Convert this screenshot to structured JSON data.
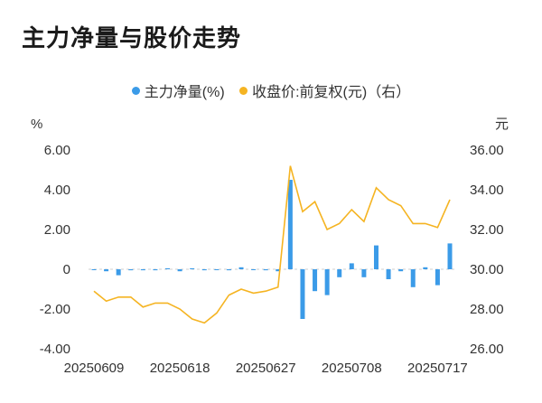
{
  "page": {
    "title": "主力净量与股价走势"
  },
  "chart_data": {
    "type": "bar",
    "title": "主力净量与股价走势",
    "legend_placement": "top-center",
    "left_axis_unit": "%",
    "right_axis_unit": "元",
    "left_ylim": [
      -4,
      6
    ],
    "left_ticks": [
      "6.00",
      "4.00",
      "2.00",
      "0",
      "-2.00",
      "-4.00"
    ],
    "right_ylim": [
      26,
      36
    ],
    "right_ticks": [
      "36.00",
      "34.00",
      "32.00",
      "30.00",
      "28.00",
      "26.00"
    ],
    "x_tick_labels": [
      "20250609",
      "20250618",
      "20250627",
      "20250708",
      "20250717"
    ],
    "x_tick_indices": [
      0,
      7,
      14,
      21,
      28
    ],
    "grid": false,
    "series": [
      {
        "name": "主力净量(%)",
        "type": "bar",
        "axis": "left",
        "color": "#3b9be8",
        "values": [
          0,
          -0.1,
          -0.3,
          -0.05,
          -0.05,
          -0.05,
          0.05,
          -0.1,
          0.05,
          -0.05,
          0,
          -0.05,
          0.1,
          0,
          -0.05,
          -0.1,
          4.5,
          -2.5,
          -1.1,
          -1.3,
          -0.4,
          0.3,
          -0.4,
          1.2,
          -0.5,
          -0.1,
          -0.9,
          0.1,
          -0.8,
          1.3
        ]
      },
      {
        "name": "收盘价:前复权(元)（右）",
        "type": "line",
        "axis": "right",
        "color": "#f5b422",
        "values": [
          28.9,
          28.4,
          28.6,
          28.6,
          28.1,
          28.3,
          28.3,
          28.0,
          27.5,
          27.3,
          27.8,
          28.7,
          29.0,
          28.8,
          28.9,
          29.1,
          35.2,
          32.9,
          33.4,
          32.0,
          32.3,
          33.0,
          32.4,
          34.1,
          33.5,
          33.2,
          32.3,
          32.3,
          32.1,
          33.5
        ]
      }
    ]
  }
}
